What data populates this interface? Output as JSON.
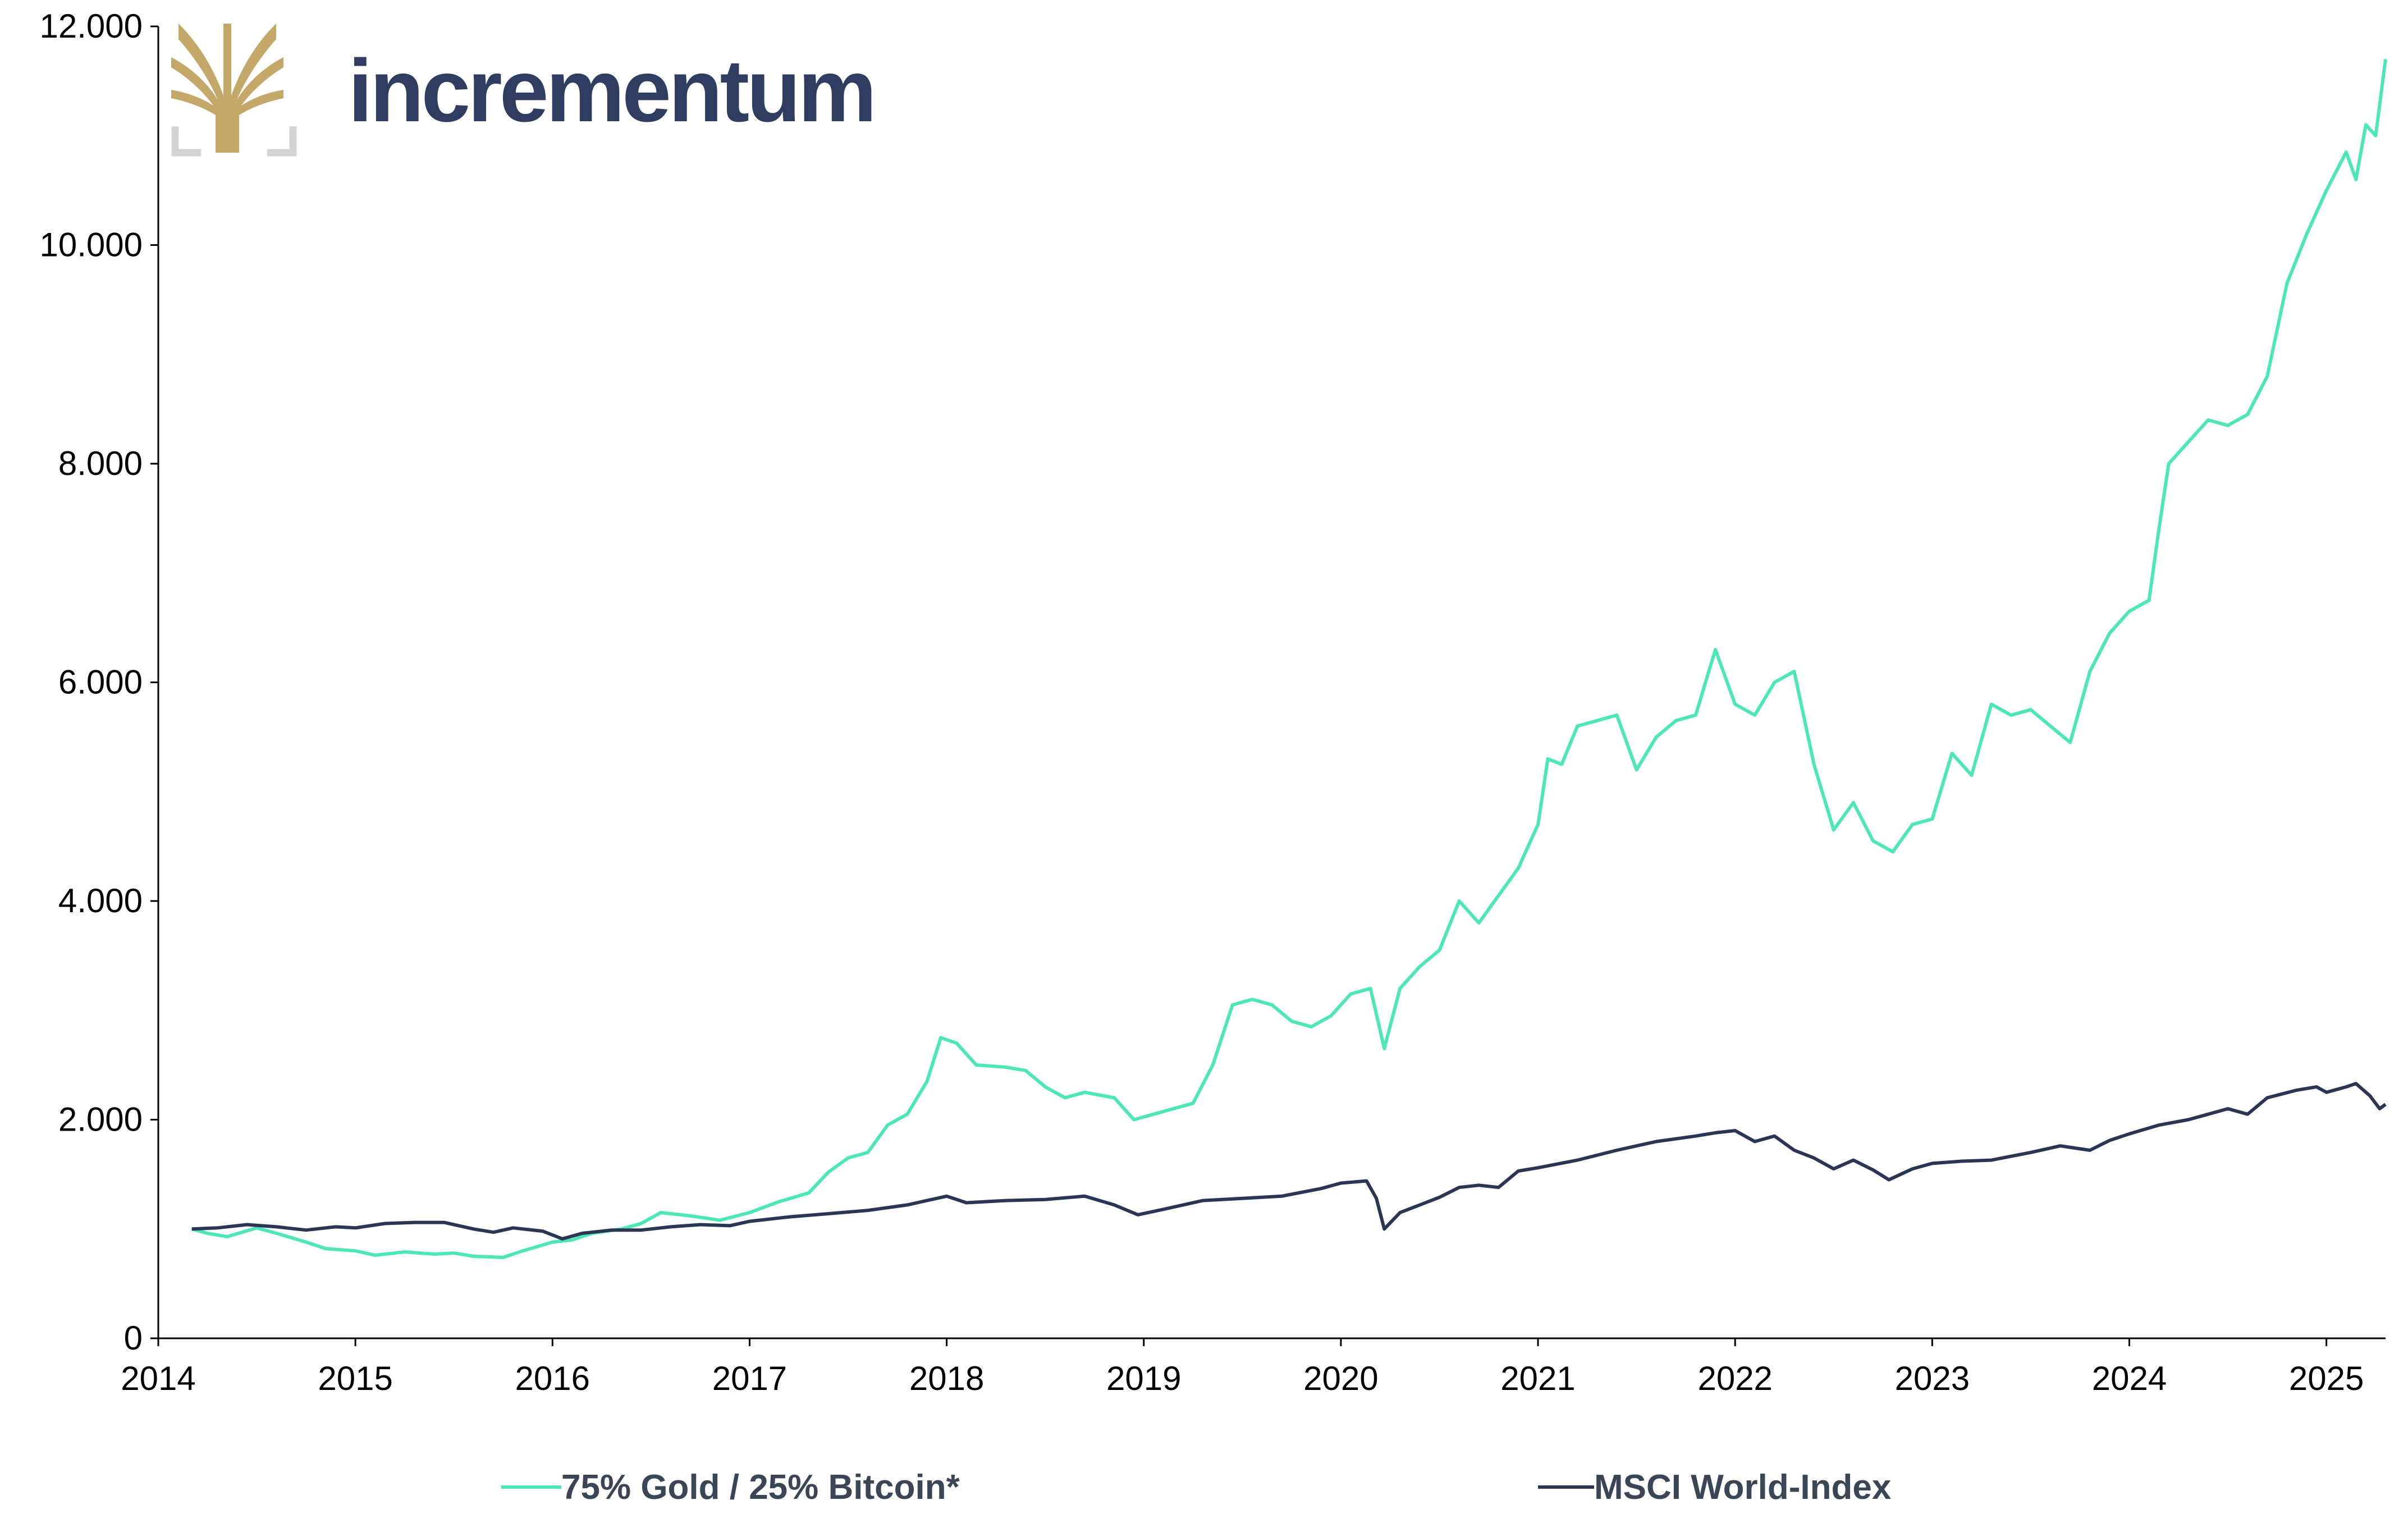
{
  "logo": {
    "brand_text": "incrementum",
    "text_color": "#2f3e60",
    "tree_color": "#c4a86a",
    "bracket_color": "#d3d3d3"
  },
  "chart_data": {
    "type": "line",
    "title": "",
    "xlabel": "",
    "ylabel": "",
    "xlim": [
      2014.0,
      2025.3
    ],
    "ylim": [
      0,
      12000
    ],
    "x_ticks": [
      "2014",
      "2015",
      "2016",
      "2017",
      "2018",
      "2019",
      "2020",
      "2021",
      "2022",
      "2023",
      "2024",
      "2025"
    ],
    "y_ticks": [
      "0",
      "2.000",
      "4.000",
      "6.000",
      "8.000",
      "10.000",
      "12.000"
    ],
    "grid": false,
    "legend_position": "bottom",
    "series": [
      {
        "name": "75% Gold / 25% Bitcoin*",
        "color": "#4de6b6",
        "points": [
          [
            2014.17,
            1000
          ],
          [
            2014.25,
            960
          ],
          [
            2014.35,
            930
          ],
          [
            2014.5,
            1010
          ],
          [
            2014.6,
            960
          ],
          [
            2014.75,
            880
          ],
          [
            2014.85,
            820
          ],
          [
            2015.0,
            800
          ],
          [
            2015.1,
            760
          ],
          [
            2015.25,
            790
          ],
          [
            2015.4,
            770
          ],
          [
            2015.5,
            780
          ],
          [
            2015.6,
            750
          ],
          [
            2015.75,
            740
          ],
          [
            2015.85,
            800
          ],
          [
            2016.0,
            880
          ],
          [
            2016.1,
            900
          ],
          [
            2016.2,
            960
          ],
          [
            2016.35,
            1000
          ],
          [
            2016.45,
            1050
          ],
          [
            2016.55,
            1150
          ],
          [
            2016.7,
            1120
          ],
          [
            2016.85,
            1080
          ],
          [
            2017.0,
            1150
          ],
          [
            2017.15,
            1250
          ],
          [
            2017.3,
            1330
          ],
          [
            2017.4,
            1520
          ],
          [
            2017.5,
            1650
          ],
          [
            2017.6,
            1700
          ],
          [
            2017.7,
            1950
          ],
          [
            2017.8,
            2050
          ],
          [
            2017.9,
            2350
          ],
          [
            2017.97,
            2750
          ],
          [
            2018.05,
            2700
          ],
          [
            2018.15,
            2500
          ],
          [
            2018.3,
            2480
          ],
          [
            2018.4,
            2450
          ],
          [
            2018.5,
            2300
          ],
          [
            2018.6,
            2200
          ],
          [
            2018.7,
            2250
          ],
          [
            2018.85,
            2200
          ],
          [
            2018.95,
            2000
          ],
          [
            2019.05,
            2050
          ],
          [
            2019.15,
            2100
          ],
          [
            2019.25,
            2150
          ],
          [
            2019.35,
            2500
          ],
          [
            2019.45,
            3050
          ],
          [
            2019.55,
            3100
          ],
          [
            2019.65,
            3050
          ],
          [
            2019.75,
            2900
          ],
          [
            2019.85,
            2850
          ],
          [
            2019.95,
            2950
          ],
          [
            2020.05,
            3150
          ],
          [
            2020.15,
            3200
          ],
          [
            2020.22,
            2650
          ],
          [
            2020.3,
            3200
          ],
          [
            2020.4,
            3400
          ],
          [
            2020.5,
            3550
          ],
          [
            2020.6,
            4000
          ],
          [
            2020.7,
            3800
          ],
          [
            2020.8,
            4050
          ],
          [
            2020.9,
            4300
          ],
          [
            2021.0,
            4700
          ],
          [
            2021.05,
            5300
          ],
          [
            2021.12,
            5250
          ],
          [
            2021.2,
            5600
          ],
          [
            2021.3,
            5650
          ],
          [
            2021.4,
            5700
          ],
          [
            2021.5,
            5200
          ],
          [
            2021.6,
            5500
          ],
          [
            2021.7,
            5650
          ],
          [
            2021.8,
            5700
          ],
          [
            2021.85,
            6000
          ],
          [
            2021.9,
            6300
          ],
          [
            2022.0,
            5800
          ],
          [
            2022.1,
            5700
          ],
          [
            2022.2,
            6000
          ],
          [
            2022.3,
            6100
          ],
          [
            2022.4,
            5250
          ],
          [
            2022.5,
            4650
          ],
          [
            2022.6,
            4900
          ],
          [
            2022.7,
            4550
          ],
          [
            2022.8,
            4450
          ],
          [
            2022.9,
            4700
          ],
          [
            2023.0,
            4750
          ],
          [
            2023.1,
            5350
          ],
          [
            2023.2,
            5150
          ],
          [
            2023.3,
            5800
          ],
          [
            2023.4,
            5700
          ],
          [
            2023.5,
            5750
          ],
          [
            2023.6,
            5600
          ],
          [
            2023.7,
            5450
          ],
          [
            2023.8,
            6100
          ],
          [
            2023.9,
            6450
          ],
          [
            2024.0,
            6650
          ],
          [
            2024.1,
            6750
          ],
          [
            2024.15,
            7400
          ],
          [
            2024.2,
            8000
          ],
          [
            2024.3,
            8200
          ],
          [
            2024.4,
            8400
          ],
          [
            2024.5,
            8350
          ],
          [
            2024.6,
            8450
          ],
          [
            2024.7,
            8800
          ],
          [
            2024.8,
            9650
          ],
          [
            2024.9,
            10100
          ],
          [
            2025.0,
            10500
          ],
          [
            2025.1,
            10850
          ],
          [
            2025.15,
            10600
          ],
          [
            2025.2,
            11100
          ],
          [
            2025.25,
            11000
          ],
          [
            2025.3,
            11700
          ]
        ]
      },
      {
        "name": "MSCI World-Index",
        "color": "#2a3654",
        "points": [
          [
            2014.17,
            1000
          ],
          [
            2014.3,
            1010
          ],
          [
            2014.45,
            1040
          ],
          [
            2014.6,
            1020
          ],
          [
            2014.75,
            990
          ],
          [
            2014.9,
            1020
          ],
          [
            2015.0,
            1010
          ],
          [
            2015.15,
            1050
          ],
          [
            2015.3,
            1060
          ],
          [
            2015.45,
            1060
          ],
          [
            2015.6,
            1000
          ],
          [
            2015.7,
            970
          ],
          [
            2015.8,
            1010
          ],
          [
            2015.95,
            980
          ],
          [
            2016.05,
            910
          ],
          [
            2016.15,
            960
          ],
          [
            2016.3,
            990
          ],
          [
            2016.45,
            990
          ],
          [
            2016.6,
            1020
          ],
          [
            2016.75,
            1040
          ],
          [
            2016.9,
            1030
          ],
          [
            2017.0,
            1070
          ],
          [
            2017.2,
            1110
          ],
          [
            2017.4,
            1140
          ],
          [
            2017.6,
            1170
          ],
          [
            2017.8,
            1220
          ],
          [
            2018.0,
            1300
          ],
          [
            2018.1,
            1240
          ],
          [
            2018.3,
            1260
          ],
          [
            2018.5,
            1270
          ],
          [
            2018.7,
            1300
          ],
          [
            2018.85,
            1220
          ],
          [
            2018.97,
            1130
          ],
          [
            2019.1,
            1180
          ],
          [
            2019.3,
            1260
          ],
          [
            2019.5,
            1280
          ],
          [
            2019.7,
            1300
          ],
          [
            2019.9,
            1370
          ],
          [
            2020.0,
            1420
          ],
          [
            2020.13,
            1440
          ],
          [
            2020.18,
            1280
          ],
          [
            2020.22,
            1000
          ],
          [
            2020.3,
            1150
          ],
          [
            2020.4,
            1220
          ],
          [
            2020.5,
            1290
          ],
          [
            2020.6,
            1380
          ],
          [
            2020.7,
            1400
          ],
          [
            2020.8,
            1380
          ],
          [
            2020.9,
            1530
          ],
          [
            2021.0,
            1560
          ],
          [
            2021.2,
            1630
          ],
          [
            2021.4,
            1720
          ],
          [
            2021.6,
            1800
          ],
          [
            2021.8,
            1850
          ],
          [
            2021.9,
            1880
          ],
          [
            2022.0,
            1900
          ],
          [
            2022.1,
            1800
          ],
          [
            2022.2,
            1850
          ],
          [
            2022.3,
            1720
          ],
          [
            2022.4,
            1650
          ],
          [
            2022.5,
            1550
          ],
          [
            2022.6,
            1630
          ],
          [
            2022.7,
            1540
          ],
          [
            2022.78,
            1450
          ],
          [
            2022.9,
            1550
          ],
          [
            2023.0,
            1600
          ],
          [
            2023.15,
            1620
          ],
          [
            2023.3,
            1630
          ],
          [
            2023.5,
            1700
          ],
          [
            2023.65,
            1760
          ],
          [
            2023.8,
            1720
          ],
          [
            2023.9,
            1810
          ],
          [
            2024.0,
            1870
          ],
          [
            2024.15,
            1950
          ],
          [
            2024.3,
            2000
          ],
          [
            2024.4,
            2050
          ],
          [
            2024.5,
            2100
          ],
          [
            2024.6,
            2050
          ],
          [
            2024.7,
            2200
          ],
          [
            2024.85,
            2270
          ],
          [
            2024.95,
            2300
          ],
          [
            2025.0,
            2250
          ],
          [
            2025.1,
            2300
          ],
          [
            2025.15,
            2330
          ],
          [
            2025.22,
            2220
          ],
          [
            2025.27,
            2100
          ],
          [
            2025.3,
            2140
          ]
        ]
      }
    ]
  }
}
